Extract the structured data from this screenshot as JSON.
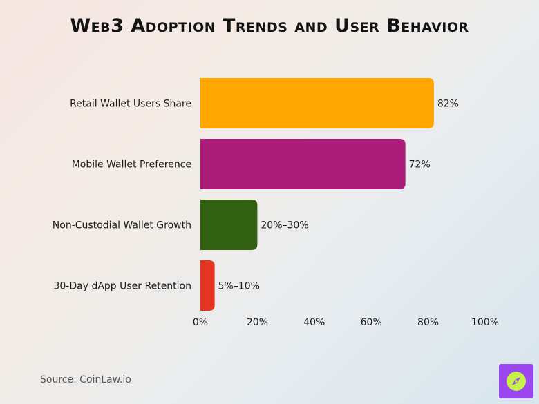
{
  "title": "Web3 Adoption Trends and User Behavior",
  "source": "Source: CoinLaw.io",
  "colors": {
    "logo_bg": "#9b46ee",
    "logo_accent": "#c8f04a"
  },
  "chart_data": {
    "type": "bar",
    "orientation": "horizontal",
    "categories": [
      "Retail Wallet Users Share",
      "Mobile Wallet Preference",
      "Non-Custodial Wallet Growth",
      "30-Day dApp User Retention"
    ],
    "values": [
      82,
      72,
      20,
      5
    ],
    "value_labels": [
      "82%",
      "72%",
      "20%–30%",
      "5%–10%"
    ],
    "colors": [
      "#ffa600",
      "#ac1d79",
      "#336113",
      "#e43524"
    ],
    "xlim": [
      0,
      100
    ],
    "xticks": [
      0,
      20,
      40,
      60,
      80,
      100
    ],
    "xtick_labels": [
      "0%",
      "20%",
      "40%",
      "60%",
      "80%",
      "100%"
    ],
    "xlabel": "",
    "ylabel": "",
    "grid": false,
    "legend": "none"
  }
}
